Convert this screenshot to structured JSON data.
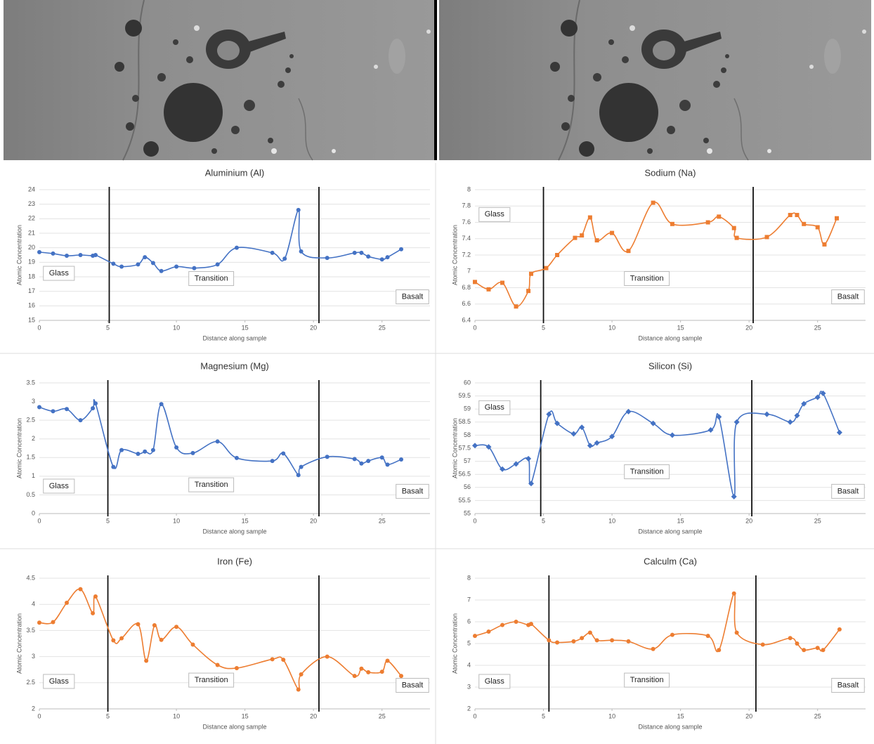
{
  "chart_data": [
    {
      "type": "line",
      "title": "Aluminium (Al)",
      "x_label": "Distance along sample",
      "y_label": "Atomic Concentration",
      "x": [
        0,
        1,
        2,
        3,
        3.9,
        4.1,
        5.4,
        6,
        7.2,
        7.7,
        8.3,
        8.9,
        10,
        11.3,
        13,
        14.4,
        17,
        17.9,
        18.9,
        19.1,
        21,
        23,
        23.5,
        24,
        25,
        25.4,
        26.4
      ],
      "values": [
        19.7,
        19.6,
        19.45,
        19.5,
        19.45,
        19.5,
        18.9,
        18.7,
        18.85,
        19.35,
        18.95,
        18.4,
        18.7,
        18.6,
        18.85,
        20.0,
        19.65,
        19.25,
        22.6,
        19.75,
        19.3,
        19.65,
        19.65,
        19.4,
        19.2,
        19.35,
        19.9
      ],
      "color": "#4472c4",
      "marker": "circle",
      "xlim": [
        0,
        28.5
      ],
      "xticks": [
        0,
        5,
        10,
        15,
        20,
        25
      ],
      "ylim": [
        15,
        24
      ],
      "yticks": [
        15,
        16,
        17,
        18,
        19,
        20,
        21,
        22,
        23,
        24
      ],
      "grid": true,
      "boundaries": [
        5.1,
        20.4
      ],
      "annotations": [
        "Glass",
        "Transition",
        "Basalt"
      ]
    },
    {
      "type": "line",
      "title": "Sodium (Na)",
      "x_label": "Distance along sample",
      "y_label": "Atomic Concentration",
      "x": [
        0,
        1,
        2,
        3,
        3.9,
        4.1,
        5.2,
        6,
        7.3,
        7.8,
        8.4,
        8.9,
        10,
        11.2,
        13,
        14.4,
        17,
        17.8,
        18.9,
        19.1,
        21.3,
        23,
        23.5,
        24,
        25,
        25.5,
        26.4
      ],
      "values": [
        6.87,
        6.78,
        6.86,
        6.57,
        6.76,
        6.97,
        7.04,
        7.2,
        7.41,
        7.44,
        7.66,
        7.38,
        7.47,
        7.25,
        7.84,
        7.58,
        7.6,
        7.67,
        7.53,
        7.41,
        7.42,
        7.69,
        7.69,
        7.58,
        7.54,
        7.33,
        7.65
      ],
      "color": "#ed7d31",
      "marker": "square",
      "xlim": [
        0,
        28.5
      ],
      "xticks": [
        0,
        5,
        10,
        15,
        20,
        25
      ],
      "ylim": [
        6.4,
        8
      ],
      "yticks": [
        6.4,
        6.6,
        6.8,
        7,
        7.2,
        7.4,
        7.6,
        7.8,
        8
      ],
      "grid": true,
      "boundaries": [
        5,
        20.3
      ],
      "annotations": [
        "Glass",
        "Transition",
        "Basalt"
      ]
    },
    {
      "type": "line",
      "title": "Magnesium (Mg)",
      "x_label": "Distance along sample",
      "y_label": "Atomic Concentration",
      "x": [
        0,
        1,
        2,
        3,
        3.9,
        4.1,
        5.4,
        6,
        7.2,
        7.7,
        8.3,
        8.9,
        10,
        11.2,
        13,
        14.4,
        17,
        17.8,
        18.9,
        19.1,
        21,
        23,
        23.5,
        24,
        25,
        25.4,
        26.4
      ],
      "values": [
        2.85,
        2.74,
        2.8,
        2.5,
        2.82,
        2.95,
        1.25,
        1.7,
        1.6,
        1.66,
        1.7,
        2.93,
        1.77,
        1.62,
        1.93,
        1.49,
        1.41,
        1.61,
        1.03,
        1.25,
        1.52,
        1.46,
        1.34,
        1.41,
        1.5,
        1.31,
        1.45
      ],
      "color": "#4472c4",
      "marker": "circle",
      "xlim": [
        0,
        28.5
      ],
      "xticks": [
        0,
        5,
        10,
        15,
        20,
        25
      ],
      "ylim": [
        0,
        3.5
      ],
      "yticks": [
        0,
        0.5,
        1,
        1.5,
        2,
        2.5,
        3,
        3.5
      ],
      "grid": true,
      "boundaries": [
        5,
        20.4
      ],
      "annotations": [
        "Glass",
        "Transition",
        "Basalt"
      ]
    },
    {
      "type": "line",
      "title": "Silicon (Si)",
      "x_label": "Distance along sample",
      "y_label": "Atomic Concentration",
      "x": [
        0,
        1,
        2,
        3,
        3.9,
        4.1,
        5.4,
        6,
        7.2,
        7.8,
        8.4,
        8.9,
        10,
        11.2,
        13,
        14.4,
        17.2,
        17.8,
        18.9,
        19.1,
        21.3,
        23,
        23.5,
        24,
        25,
        25.4,
        26.6
      ],
      "values": [
        57.6,
        57.55,
        56.7,
        56.9,
        57.1,
        56.15,
        58.8,
        58.45,
        58.05,
        58.3,
        57.6,
        57.7,
        57.95,
        58.9,
        58.45,
        58.0,
        58.2,
        58.7,
        55.65,
        58.5,
        58.8,
        58.5,
        58.75,
        59.2,
        59.45,
        59.6,
        58.1
      ],
      "color": "#4472c4",
      "marker": "diamond",
      "xlim": [
        0,
        28.5
      ],
      "xticks": [
        0,
        5,
        10,
        15,
        20,
        25
      ],
      "ylim": [
        55,
        60
      ],
      "yticks": [
        55,
        55.5,
        56,
        56.5,
        57,
        57.5,
        58,
        58.5,
        59,
        59.5,
        60
      ],
      "grid": true,
      "boundaries": [
        4.8,
        20.2
      ],
      "annotations": [
        "Glass",
        "Transition",
        "Basalt"
      ]
    },
    {
      "type": "line",
      "title": "Iron (Fe)",
      "x_label": "Distance along sample",
      "y_label": "Atomic Concentration",
      "x": [
        0,
        1,
        2,
        3,
        3.9,
        4.1,
        5.4,
        6,
        7.2,
        7.8,
        8.4,
        8.9,
        10,
        11.2,
        13,
        14.4,
        17,
        17.8,
        18.9,
        19.1,
        21,
        23,
        23.5,
        24,
        25,
        25.4,
        26.4
      ],
      "values": [
        3.65,
        3.66,
        4.03,
        4.29,
        3.83,
        4.15,
        3.31,
        3.35,
        3.62,
        2.92,
        3.6,
        3.32,
        3.57,
        3.23,
        2.84,
        2.78,
        2.95,
        2.94,
        2.37,
        2.66,
        3.0,
        2.63,
        2.77,
        2.7,
        2.71,
        2.92,
        2.63
      ],
      "color": "#ed7d31",
      "marker": "circle",
      "xlim": [
        0,
        28.5
      ],
      "xticks": [
        0,
        5,
        10,
        15,
        20,
        25
      ],
      "ylim": [
        2,
        4.5
      ],
      "yticks": [
        2,
        2.5,
        3,
        3.5,
        4,
        4.5
      ],
      "grid": true,
      "boundaries": [
        5,
        20.4
      ],
      "annotations": [
        "Glass",
        "Transition",
        "Basalt"
      ]
    },
    {
      "type": "line",
      "title": "Calculm (Ca)",
      "x_label": "Distance along sample",
      "y_label": "Atomic Concentration",
      "x": [
        0,
        1,
        2,
        3,
        3.9,
        4.1,
        5.4,
        6,
        7.2,
        7.8,
        8.4,
        8.9,
        10,
        11.2,
        13,
        14.4,
        17,
        17.8,
        18.9,
        19.1,
        21,
        23,
        23.5,
        24,
        25,
        25.4,
        26.6
      ],
      "values": [
        5.35,
        5.55,
        5.85,
        6.0,
        5.85,
        5.9,
        5.15,
        5.05,
        5.1,
        5.25,
        5.5,
        5.15,
        5.15,
        5.1,
        4.75,
        5.4,
        5.35,
        4.7,
        7.3,
        5.5,
        4.95,
        5.25,
        5.0,
        4.7,
        4.8,
        4.7,
        5.65
      ],
      "color": "#ed7d31",
      "marker": "circle",
      "xlim": [
        0,
        28.5
      ],
      "xticks": [
        0,
        5,
        10,
        15,
        20,
        25
      ],
      "ylim": [
        2,
        8
      ],
      "yticks": [
        2,
        3,
        4,
        5,
        6,
        7,
        8
      ],
      "grid": true,
      "boundaries": [
        5.4,
        20.5
      ],
      "annotations": [
        "Glass",
        "Transition",
        "Basalt"
      ]
    }
  ]
}
